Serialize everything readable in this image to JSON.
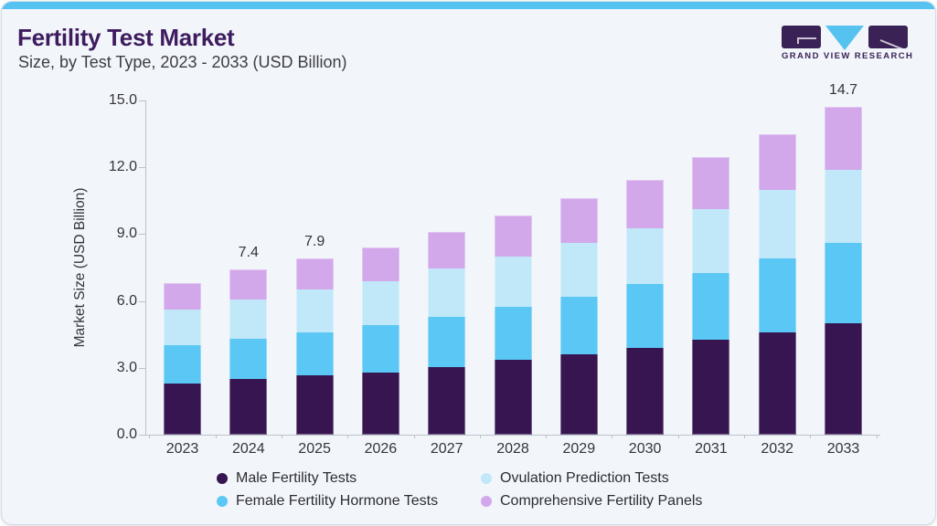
{
  "theme": {
    "panel_bg": "#f2f6fa",
    "accent_strip": "#55c2ef",
    "title_color": "#3e1c5f",
    "subtitle_color": "#3d3d46",
    "text_color": "#33343a",
    "axis_color": "#b9c2ca",
    "logo_color": "#3a2256"
  },
  "header": {
    "title": "Fertility Test Market",
    "subtitle": "Size, by Test Type, 2023 - 2033 (USD Billion)"
  },
  "logo": {
    "text": "GRAND VIEW RESEARCH"
  },
  "chart_data": {
    "type": "bar",
    "stacked": true,
    "title": "Fertility Test Market Size, by Test Type, 2023 - 2033 (USD Billion)",
    "xlabel": "",
    "ylabel": "Market Size (USD Billion)",
    "ylim": [
      0,
      15
    ],
    "ytick_step": 3,
    "ytick_decimals": 1,
    "grid": false,
    "legend_position": "bottom",
    "categories": [
      "2023",
      "2024",
      "2025",
      "2026",
      "2027",
      "2028",
      "2029",
      "2030",
      "2031",
      "2032",
      "2033"
    ],
    "series": [
      {
        "name": "Male Fertility Tests",
        "color": "#371551",
        "values": [
          2.3,
          2.5,
          2.65,
          2.8,
          3.05,
          3.35,
          3.6,
          3.9,
          4.25,
          4.6,
          5.0
        ]
      },
      {
        "name": "Female Fertility Hormone Tests",
        "color": "#5bc7f4",
        "values": [
          1.7,
          1.8,
          1.95,
          2.1,
          2.25,
          2.4,
          2.6,
          2.85,
          3.0,
          3.3,
          3.6
        ]
      },
      {
        "name": "Ovulation Prediction Tests",
        "color": "#c0e8f9",
        "values": [
          1.6,
          1.75,
          1.9,
          2.0,
          2.15,
          2.25,
          2.4,
          2.5,
          2.85,
          3.1,
          3.3
        ]
      },
      {
        "name": "Comprehensive Fertility Panels",
        "color": "#d2a8ea",
        "values": [
          1.2,
          1.35,
          1.4,
          1.5,
          1.65,
          1.85,
          2.0,
          2.2,
          2.35,
          2.5,
          2.8
        ]
      }
    ],
    "totals": [
      6.8,
      7.4,
      7.9,
      8.4,
      9.1,
      9.85,
      10.6,
      11.45,
      12.45,
      13.5,
      14.7
    ],
    "bar_labels": {
      "2024": "7.4",
      "2025": "7.9",
      "2033": "14.7"
    },
    "legend_order": [
      "Male Fertility Tests",
      "Ovulation Prediction Tests",
      "Female Fertility Hormone Tests",
      "Comprehensive Fertility Panels"
    ]
  }
}
